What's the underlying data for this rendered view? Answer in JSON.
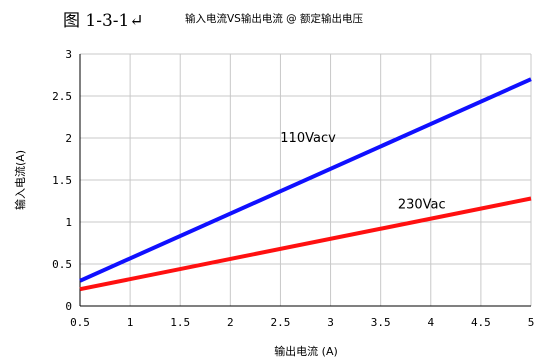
{
  "figure": {
    "label": "图 1-3-1↵"
  },
  "chart_data": {
    "type": "line",
    "title": "输入电流VS输出电流 @ 额定输出电压",
    "xlabel": "输出电流  (A)",
    "ylabel": "输入电流(A)",
    "xlim": [
      0.5,
      5
    ],
    "ylim": [
      0,
      3
    ],
    "xticks": [
      "0.5",
      "1",
      "1.5",
      "2",
      "2.5",
      "3",
      "3.5",
      "4",
      "4.5",
      "5"
    ],
    "yticks": [
      "0",
      "0.5",
      "1",
      "1.5",
      "2",
      "2.5",
      "3"
    ],
    "grid": true,
    "series": [
      {
        "name": "110Vacv",
        "color": "#1010ff",
        "x": [
          0.5,
          5
        ],
        "y": [
          0.3,
          2.7
        ]
      },
      {
        "name": "230Vac",
        "color": "#ff1010",
        "x": [
          0.5,
          5
        ],
        "y": [
          0.2,
          1.28
        ]
      }
    ]
  }
}
